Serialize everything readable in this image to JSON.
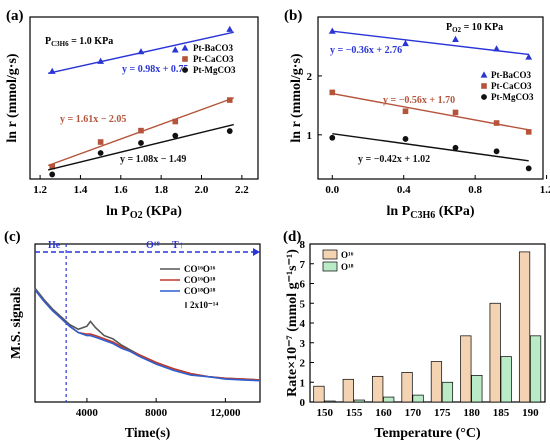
{
  "colors": {
    "ba": "#2a35d6",
    "ca": "#b5543a",
    "mg": "#111111",
    "co16": "#555555",
    "co18": "#c0392b",
    "co1618": "#2f5fd0",
    "bar16": "#f4d3b3",
    "bar18": "#b9ecc6",
    "dashed": "#2a35d6"
  },
  "chart_data": [
    {
      "panel": "(a)",
      "type": "scatter",
      "annotation": "P_C3H6 = 1.0 KPa",
      "xlabel": "ln P_O2 (KPa)",
      "ylabel": "ln r (mmol/g·s)",
      "xlim": [
        1.15,
        2.28
      ],
      "ylim": [
        -0.35,
        3.2
      ],
      "xticks": [
        "1.2",
        "1.4",
        "1.6",
        "1.8",
        "2.0",
        "2.2"
      ],
      "xtick_values": [
        1.2,
        1.4,
        1.6,
        1.8,
        2.0,
        2.2
      ],
      "series": [
        {
          "name": "Pt-BaCO3",
          "marker": "triangle",
          "color_key": "ba",
          "x": [
            1.26,
            1.5,
            1.7,
            1.87,
            2.14
          ],
          "y": [
            2.01,
            2.23,
            2.44,
            2.48,
            2.93
          ],
          "fit": {
            "slope": 0.98,
            "intercept": 0.75
          },
          "fit_label": "y = 0.98x + 0.75"
        },
        {
          "name": "Pt-CaCO3",
          "marker": "square",
          "color_key": "ca",
          "x": [
            1.26,
            1.5,
            1.7,
            1.87,
            2.14
          ],
          "y": [
            -0.08,
            0.46,
            0.71,
            0.91,
            1.38
          ],
          "fit": {
            "slope": 1.61,
            "intercept": -2.05
          },
          "fit_label": "y = 1.61x − 2.05"
        },
        {
          "name": "Pt-MgCO3",
          "marker": "circle",
          "color_key": "mg",
          "x": [
            1.26,
            1.5,
            1.7,
            1.87,
            2.14
          ],
          "y": [
            -0.25,
            0.22,
            0.44,
            0.6,
            0.7
          ],
          "fit": {
            "slope": 1.08,
            "intercept": -1.49
          },
          "fit_label": "y = 1.08x − 1.49"
        }
      ]
    },
    {
      "panel": "(b)",
      "type": "scatter",
      "annotation": "P_O2 = 10 KPa",
      "xlabel": "ln P_C3H6 (KPa)",
      "ylabel": "ln r (mmol/g·s)",
      "xlim": [
        -0.08,
        1.18
      ],
      "ylim": [
        0.25,
        3.0
      ],
      "xticks": [
        "0.0",
        "0.4",
        "0.8",
        "1.2"
      ],
      "xtick_values": [
        0.0,
        0.4,
        0.8,
        1.2
      ],
      "yticks": [
        "1",
        "2"
      ],
      "ytick_values": [
        1,
        2
      ],
      "series": [
        {
          "name": "Pt-BaCO3",
          "marker": "triangle",
          "color_key": "ba",
          "x": [
            0.0,
            0.41,
            0.69,
            0.92,
            1.1
          ],
          "y": [
            2.76,
            2.55,
            2.62,
            2.46,
            2.32
          ],
          "fit": {
            "slope": -0.36,
            "intercept": 2.76
          },
          "fit_label": "y = −0.36x + 2.76"
        },
        {
          "name": "Pt-CaCO3",
          "marker": "square",
          "color_key": "ca",
          "x": [
            0.0,
            0.41,
            0.69,
            0.92,
            1.1
          ],
          "y": [
            1.72,
            1.4,
            1.38,
            1.2,
            1.05
          ],
          "fit": {
            "slope": -0.56,
            "intercept": 1.7
          },
          "fit_label": "y = −0.56x + 1.70"
        },
        {
          "name": "Pt-MgCO3",
          "marker": "circle",
          "color_key": "mg",
          "x": [
            0.0,
            0.41,
            0.69,
            0.92,
            1.1
          ],
          "y": [
            0.95,
            0.93,
            0.78,
            0.72,
            0.43
          ],
          "fit": {
            "slope": -0.42,
            "intercept": 1.02
          },
          "fit_label": "y = −0.42x + 1.02"
        }
      ]
    },
    {
      "panel": "(c)",
      "type": "line",
      "xlabel": "Time(s)",
      "ylabel": "M.S. signals",
      "xlim": [
        1000,
        14000
      ],
      "ylim": [
        0,
        10
      ],
      "xticks": [
        "4000",
        "8000",
        "12,000"
      ],
      "xtick_values": [
        4000,
        8000,
        12000
      ],
      "switch_time": 2800,
      "labels": {
        "gas1": "He",
        "gas2": "O¹⁸",
        "arrow": "T↑",
        "scale": "2x10⁻¹⁴"
      },
      "series": [
        {
          "name": "CO¹⁶O¹⁶",
          "color_key": "co16",
          "x": [
            1000,
            1500,
            2000,
            2500,
            3000,
            3500,
            4000,
            4200,
            4500,
            5000,
            5500,
            6000,
            6500,
            7000,
            8000,
            9000,
            10000,
            11000,
            12000,
            13000,
            14000
          ],
          "y": [
            7.2,
            6.5,
            5.9,
            5.4,
            4.9,
            4.6,
            4.8,
            5.1,
            4.7,
            4.2,
            4.0,
            3.6,
            3.3,
            3.0,
            2.5,
            2.1,
            1.8,
            1.6,
            1.5,
            1.45,
            1.4
          ]
        },
        {
          "name": "CO¹⁶O¹⁸",
          "color_key": "co18",
          "x": [
            1000,
            1500,
            2000,
            2500,
            3000,
            3500,
            4000,
            4200,
            4500,
            5000,
            5500,
            6000,
            6500,
            7000,
            8000,
            9000,
            10000,
            11000,
            12000,
            13000,
            14000
          ],
          "y": [
            7.1,
            6.4,
            5.8,
            5.3,
            4.8,
            4.4,
            4.3,
            4.3,
            4.2,
            4.0,
            3.8,
            3.5,
            3.2,
            3.0,
            2.5,
            2.1,
            1.8,
            1.6,
            1.5,
            1.45,
            1.4
          ]
        },
        {
          "name": "CO¹⁸O¹⁸",
          "color_key": "co1618",
          "x": [
            1000,
            1500,
            2000,
            2500,
            3000,
            3500,
            4000,
            4200,
            4500,
            5000,
            5500,
            6000,
            6500,
            7000,
            8000,
            9000,
            10000,
            11000,
            12000,
            13000,
            14000
          ],
          "y": [
            7.1,
            6.4,
            5.8,
            5.3,
            4.8,
            4.4,
            4.2,
            4.2,
            4.1,
            3.9,
            3.7,
            3.4,
            3.2,
            2.9,
            2.4,
            2.0,
            1.7,
            1.6,
            1.45,
            1.4,
            1.35
          ]
        }
      ]
    },
    {
      "panel": "(d)",
      "type": "bar",
      "xlabel": "Temperature (°C)",
      "ylabel": "Rate×10⁻⁷ (mmol g⁻¹s⁻¹)",
      "ylim": [
        0,
        8
      ],
      "yticks": [
        "0",
        "1",
        "2",
        "3",
        "4",
        "5",
        "6",
        "7",
        "8"
      ],
      "ytick_values": [
        0,
        1,
        2,
        3,
        4,
        5,
        6,
        7,
        8
      ],
      "categories": [
        "150",
        "155",
        "160",
        "170",
        "175",
        "180",
        "185",
        "190"
      ],
      "series": [
        {
          "name": "O¹⁶",
          "color_key": "bar16",
          "values": [
            0.8,
            1.15,
            1.3,
            1.5,
            2.05,
            3.35,
            5.0,
            7.6
          ]
        },
        {
          "name": "O¹⁸",
          "color_key": "bar18",
          "values": [
            0.05,
            0.1,
            0.25,
            0.35,
            1.0,
            1.35,
            2.3,
            3.35
          ]
        }
      ]
    }
  ]
}
